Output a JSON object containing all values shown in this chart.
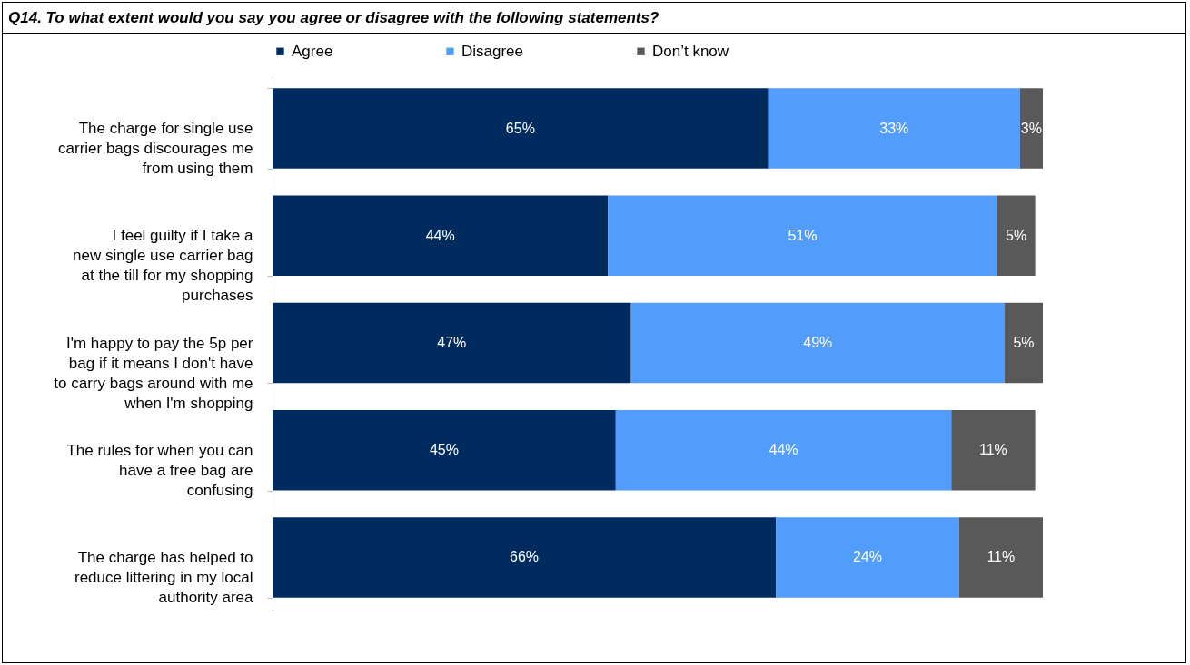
{
  "chart_data": {
    "type": "bar",
    "orientation": "horizontal",
    "stacked": true,
    "title": "Q14. To what extent would you say you agree or disagree with the following statements?",
    "categories": [
      "The charge for single use carrier bags discourages me from using them",
      "I feel guilty if I take a new single use carrier bag at the till for my shopping purchases",
      "I'm happy to pay the 5p per bag if it means I don't have to carry bags around with me when I'm shopping",
      "The rules for when you can have a free bag are confusing",
      "The charge has helped to reduce littering in my local authority area"
    ],
    "series": [
      {
        "name": "Agree",
        "color": "#002b5e",
        "values": [
          65,
          44,
          47,
          45,
          66
        ],
        "value_labels": [
          "65%",
          "44%",
          "47%",
          "45%",
          "66%"
        ]
      },
      {
        "name": "Disagree",
        "color": "#529dfc",
        "values": [
          33,
          51,
          49,
          44,
          24
        ],
        "value_labels": [
          "33%",
          "51%",
          "49%",
          "44%",
          "24%"
        ]
      },
      {
        "name": "Don’t know",
        "color": "#595959",
        "values": [
          3,
          5,
          5,
          11,
          11
        ],
        "value_labels": [
          "3%",
          "5%",
          "5%",
          "11%",
          "11%"
        ]
      }
    ],
    "legend": "top",
    "grid": false
  }
}
